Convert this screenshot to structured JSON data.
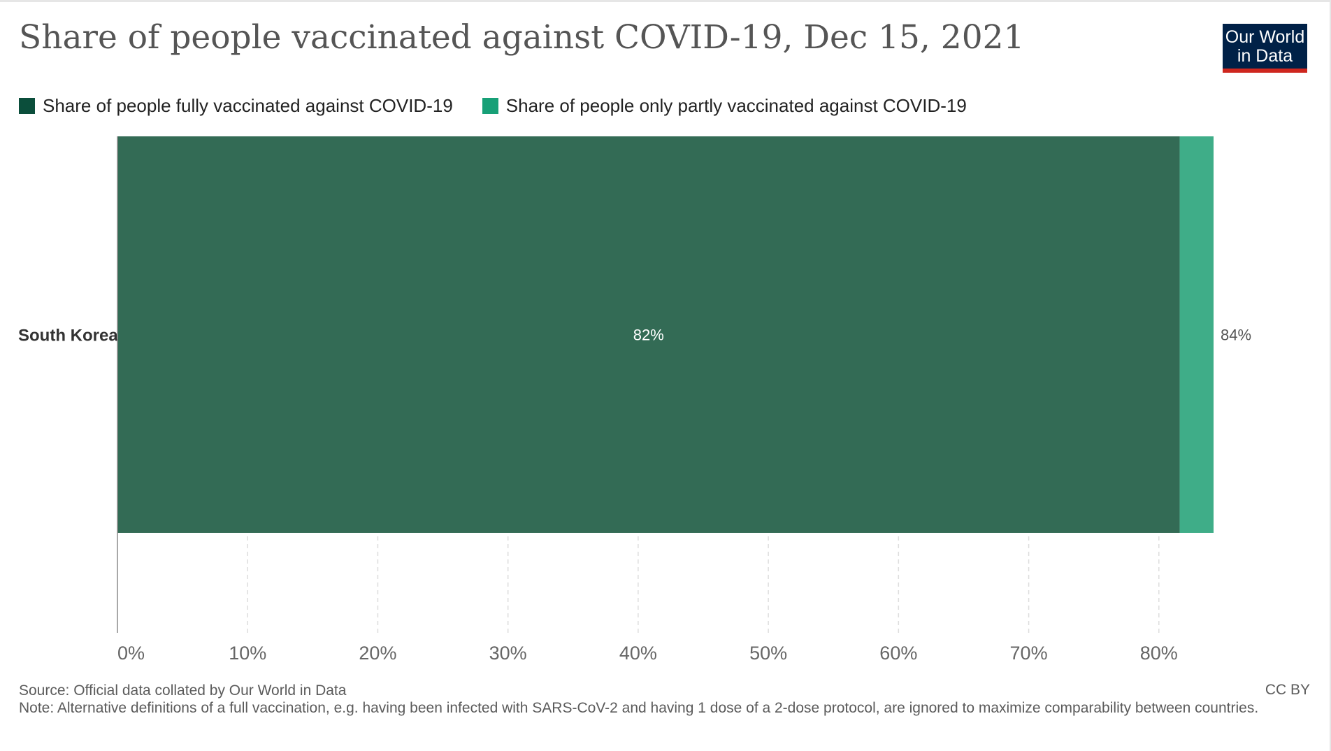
{
  "header": {
    "title": "Share of people vaccinated against COVID-19, Dec 15, 2021",
    "logo_line1": "Our World",
    "logo_line2": "in Data"
  },
  "colors": {
    "full": "#336b55",
    "partial": "#3fad88",
    "legend_full": "#0b4e3b",
    "legend_partial": "#17a077",
    "axis": "#8c8c8c",
    "grid": "#dddddd",
    "tick_text": "#666666"
  },
  "chart_data": {
    "type": "bar",
    "orientation": "horizontal",
    "stacked": true,
    "title": "Share of people vaccinated against COVID-19, Dec 15, 2021",
    "categories": [
      "South Korea"
    ],
    "series": [
      {
        "name": "Share of people fully vaccinated against COVID-19",
        "values": [
          81.6
        ]
      },
      {
        "name": "Share of people only partly vaccinated against COVID-19",
        "values": [
          2.6
        ]
      }
    ],
    "data_labels": [
      {
        "category": "South Korea",
        "series": 0,
        "text": "82%"
      },
      {
        "category": "South Korea",
        "total": true,
        "text": "84%"
      }
    ],
    "xlim": [
      0,
      90
    ],
    "xticks": [
      0,
      10,
      20,
      30,
      40,
      50,
      60,
      70,
      80
    ],
    "xtick_labels": [
      "0%",
      "10%",
      "20%",
      "30%",
      "40%",
      "50%",
      "60%",
      "70%",
      "80%"
    ],
    "grid": true,
    "legend_position": "top-left"
  },
  "footer": {
    "source": "Source: Official data collated by Our World in Data",
    "note": "Note: Alternative definitions of a full vaccination, e.g. having been infected with SARS-CoV-2 and having 1 dose of a 2-dose protocol, are ignored to maximize comparability between countries.",
    "license": "CC BY"
  }
}
